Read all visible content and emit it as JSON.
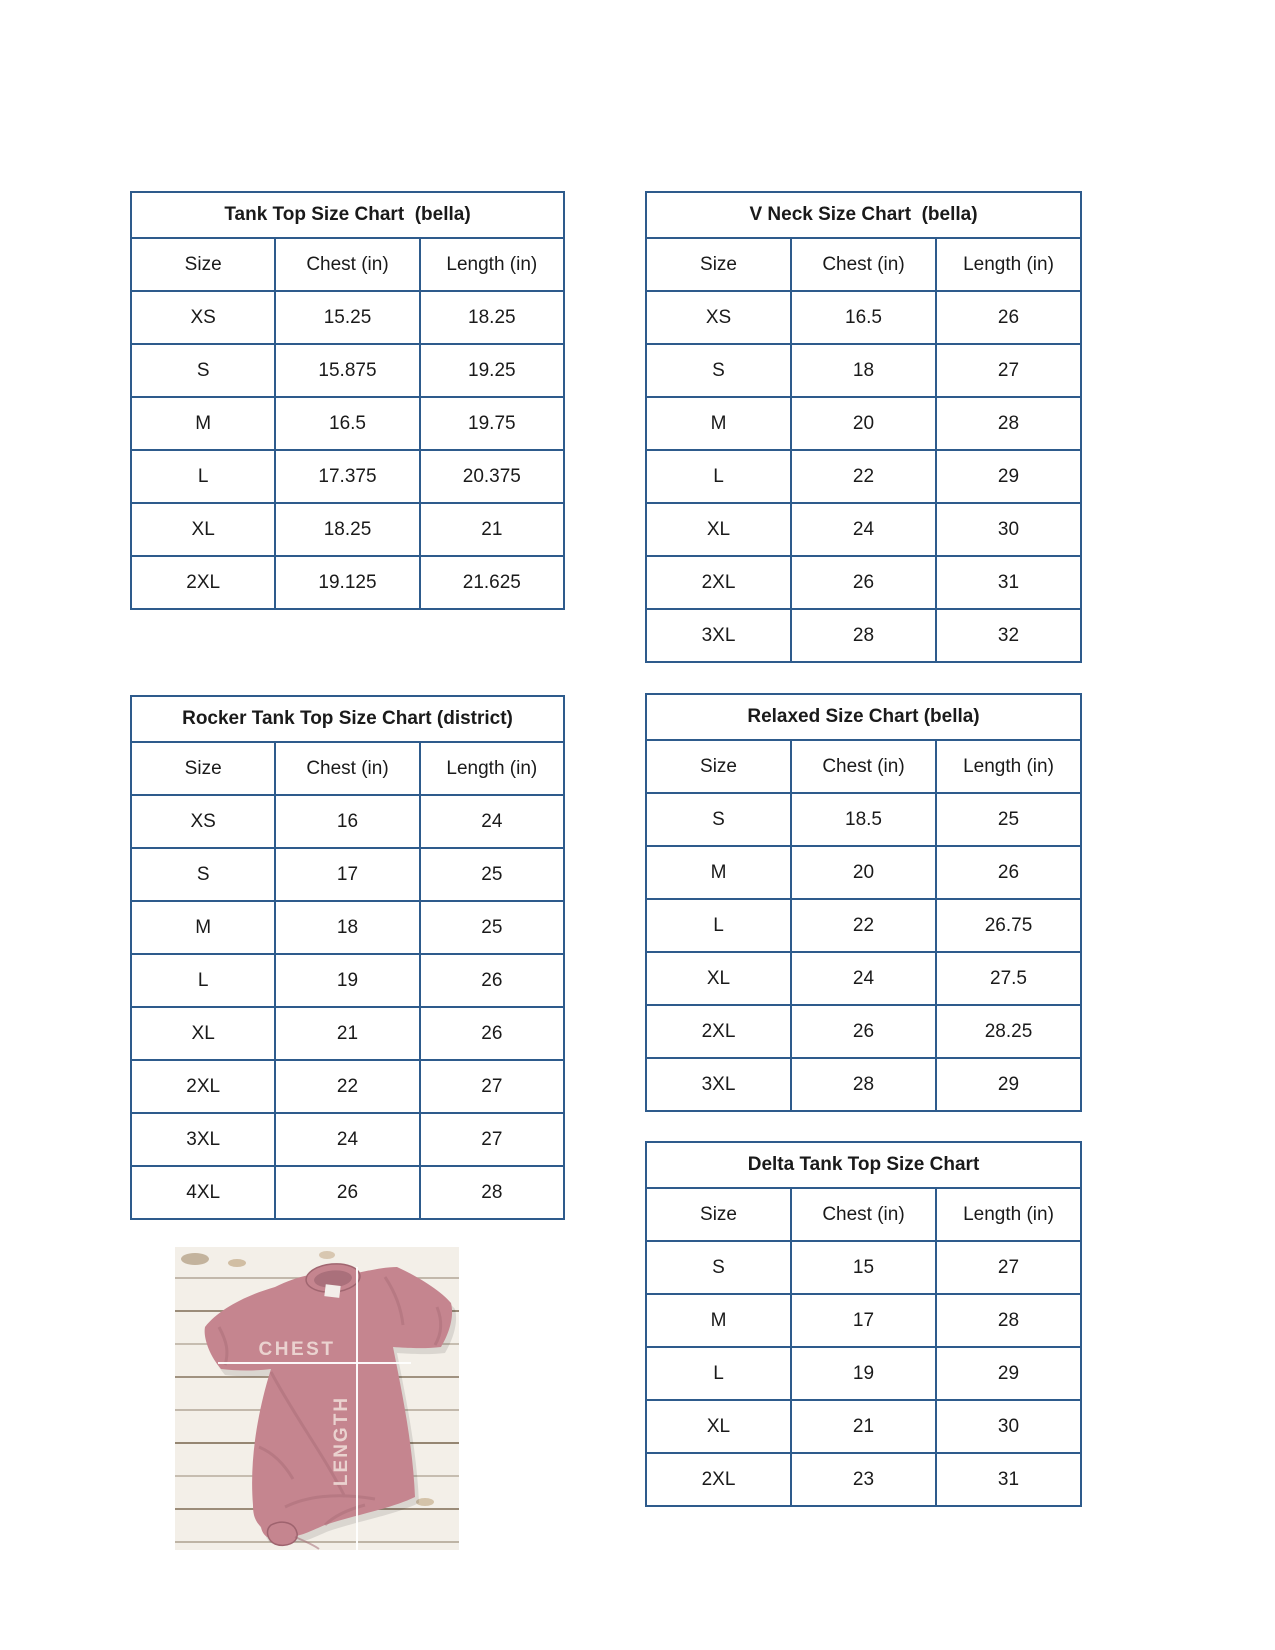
{
  "colors": {
    "table_border": "#2E5B8C",
    "text": "#1A1A1A",
    "shirt": "#C5858F",
    "shirt_dark": "#A06670",
    "collar_inner": "#AA707B",
    "wood": "#F3EFE8",
    "wood_seam": "#7E6C55",
    "measure_line": "#FFFFFF",
    "measure_label": "#EAD2CF"
  },
  "tables": [
    {
      "title": "Tank Top Size Chart  (bella)",
      "headers": [
        "Size",
        "Chest (in)",
        "Length (in)"
      ],
      "rows": [
        [
          "XS",
          "15.25",
          "18.25"
        ],
        [
          "S",
          "15.875",
          "19.25"
        ],
        [
          "M",
          "16.5",
          "19.75"
        ],
        [
          "L",
          "17.375",
          "20.375"
        ],
        [
          "XL",
          "18.25",
          "21"
        ],
        [
          "2XL",
          "19.125",
          "21.625"
        ]
      ]
    },
    {
      "title": "V Neck Size Chart  (bella)",
      "headers": [
        "Size",
        "Chest (in)",
        "Length (in)"
      ],
      "rows": [
        [
          "XS",
          "16.5",
          "26"
        ],
        [
          "S",
          "18",
          "27"
        ],
        [
          "M",
          "20",
          "28"
        ],
        [
          "L",
          "22",
          "29"
        ],
        [
          "XL",
          "24",
          "30"
        ],
        [
          "2XL",
          "26",
          "31"
        ],
        [
          "3XL",
          "28",
          "32"
        ]
      ]
    },
    {
      "title": "Rocker Tank Top Size Chart (district)",
      "headers": [
        "Size",
        "Chest (in)",
        "Length (in)"
      ],
      "rows": [
        [
          "XS",
          "16",
          "24"
        ],
        [
          "S",
          "17",
          "25"
        ],
        [
          "M",
          "18",
          "25"
        ],
        [
          "L",
          "19",
          "26"
        ],
        [
          "XL",
          "21",
          "26"
        ],
        [
          "2XL",
          "22",
          "27"
        ],
        [
          "3XL",
          "24",
          "27"
        ],
        [
          "4XL",
          "26",
          "28"
        ]
      ]
    },
    {
      "title": "Relaxed Size Chart (bella)",
      "headers": [
        "Size",
        "Chest (in)",
        "Length (in)"
      ],
      "rows": [
        [
          "S",
          "18.5",
          "25"
        ],
        [
          "M",
          "20",
          "26"
        ],
        [
          "L",
          "22",
          "26.75"
        ],
        [
          "XL",
          "24",
          "27.5"
        ],
        [
          "2XL",
          "26",
          "28.25"
        ],
        [
          "3XL",
          "28",
          "29"
        ]
      ]
    },
    {
      "title": "Delta Tank Top Size Chart",
      "headers": [
        "Size",
        "Chest (in)",
        "Length (in)"
      ],
      "rows": [
        [
          "S",
          "15",
          "27"
        ],
        [
          "M",
          "17",
          "28"
        ],
        [
          "L",
          "19",
          "29"
        ],
        [
          "XL",
          "21",
          "30"
        ],
        [
          "2XL",
          "23",
          "31"
        ]
      ]
    }
  ],
  "photo": {
    "chest_label": "CHEST",
    "length_label": "LENGTH"
  }
}
